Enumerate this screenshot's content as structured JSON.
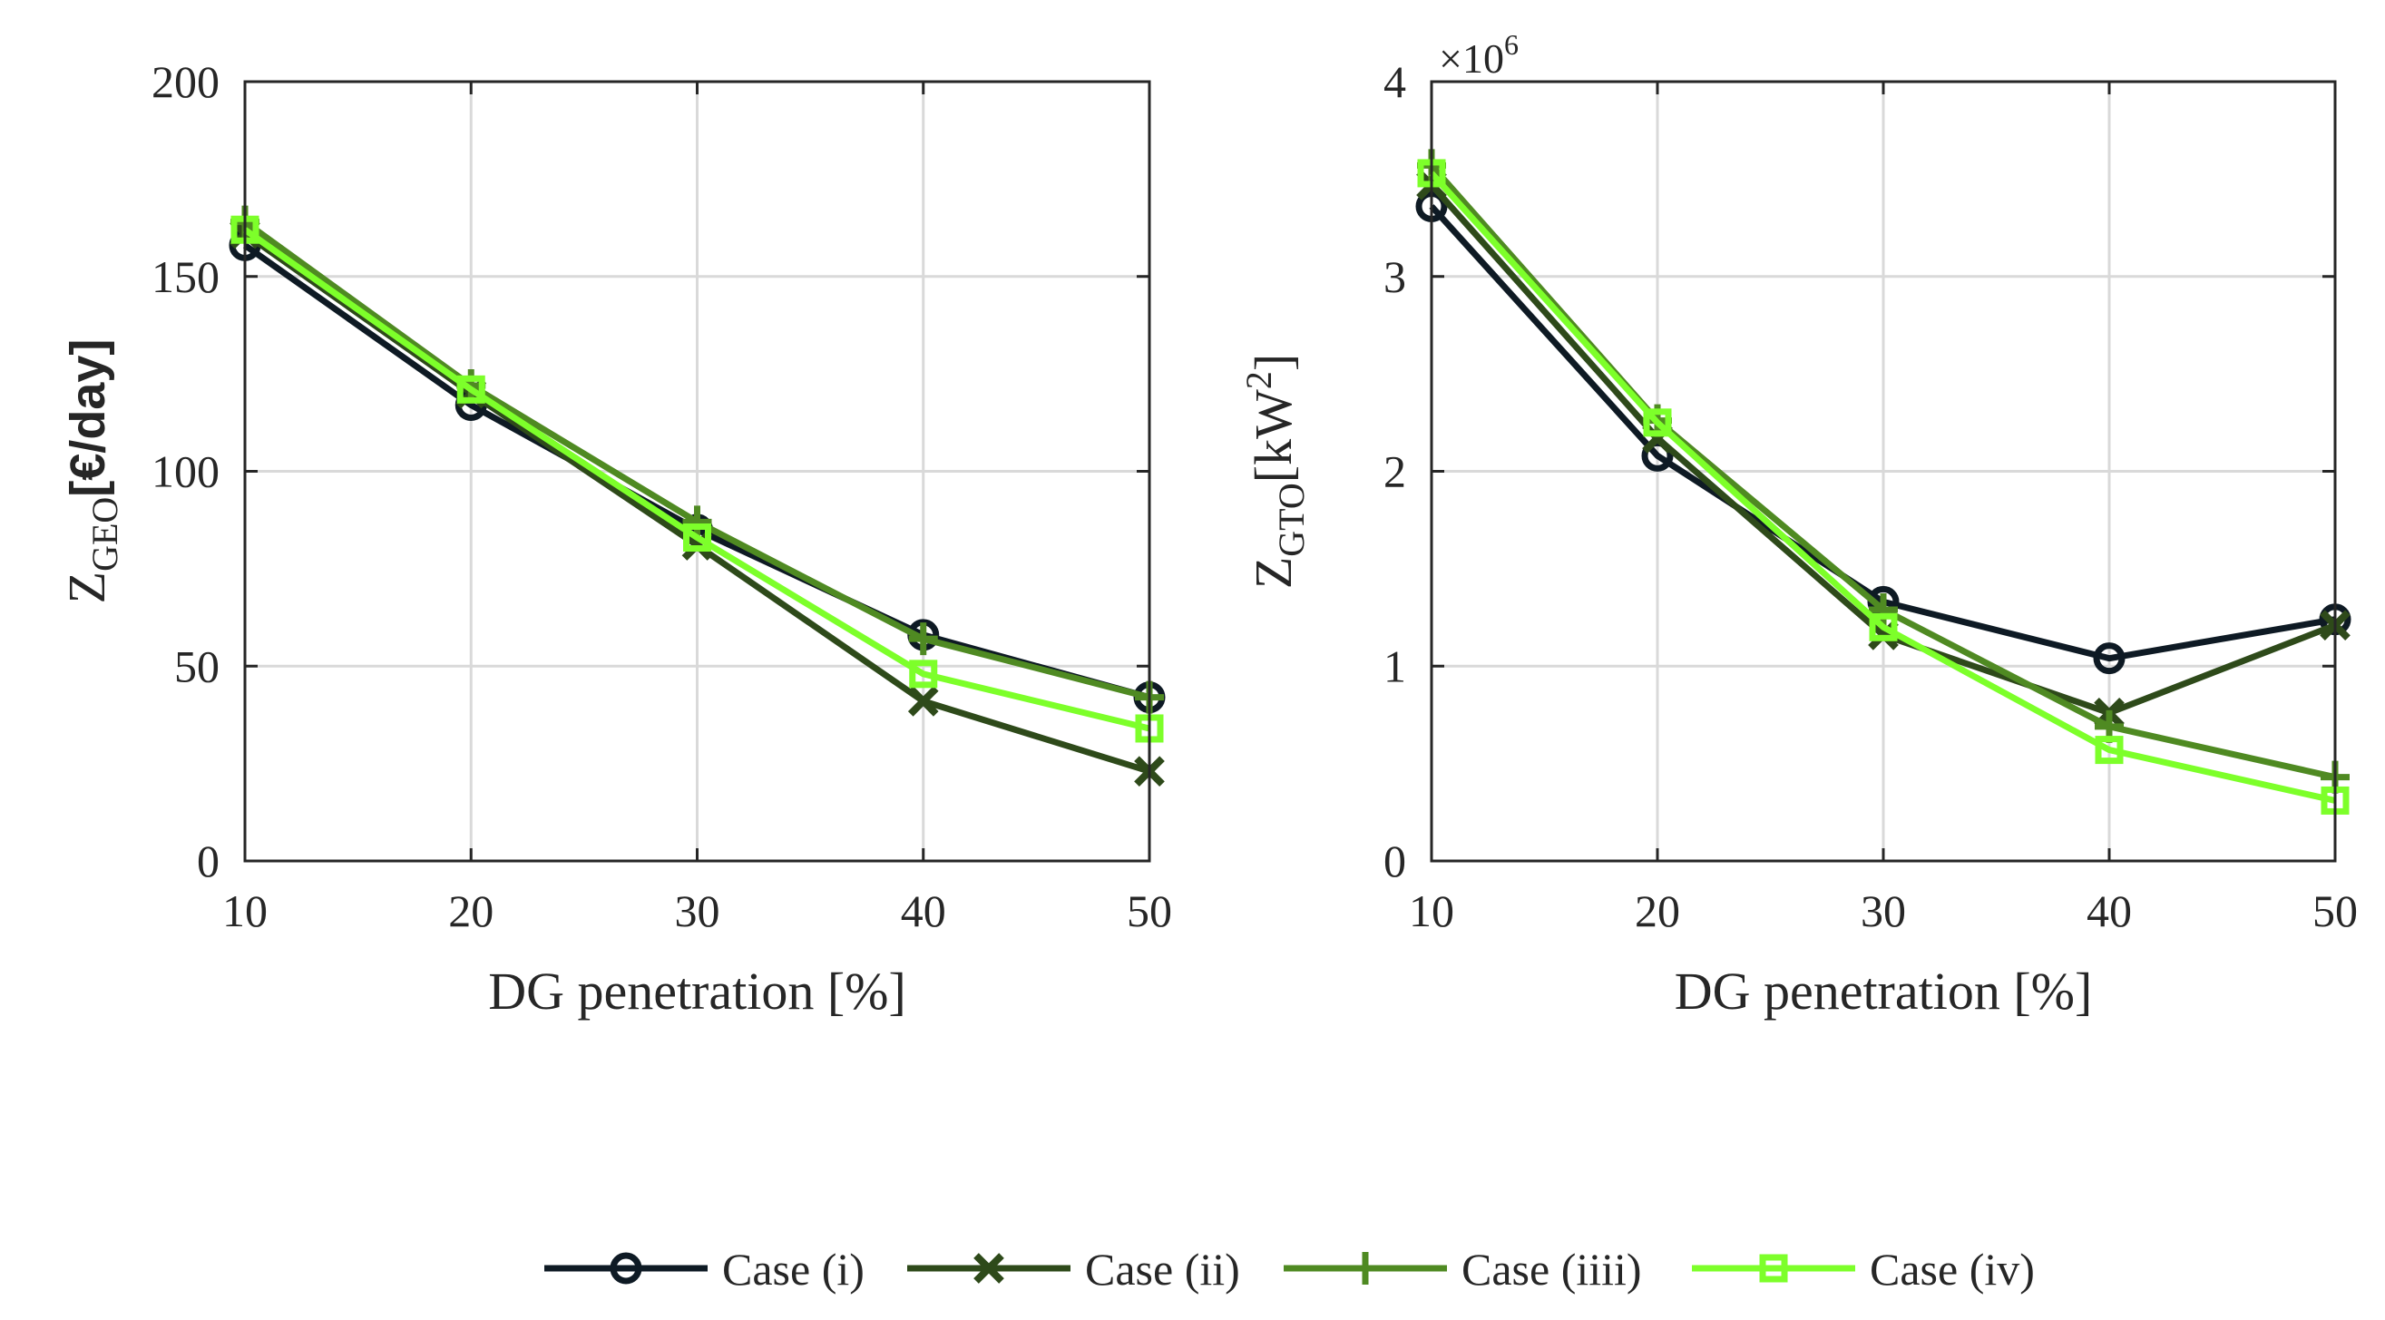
{
  "chart_data": [
    {
      "type": "line",
      "title": "",
      "xlabel": "DG penetration [%]",
      "ylabel": {
        "main": "Z",
        "sub": "GEO",
        "unit": "[€/day]"
      },
      "x": [
        10,
        20,
        30,
        40,
        50
      ],
      "xlim": [
        10,
        50
      ],
      "ylim": [
        0,
        200
      ],
      "xticks": [
        "10",
        "20",
        "30",
        "40",
        "50"
      ],
      "yticks": [
        "0",
        "50",
        "100",
        "150",
        "200"
      ],
      "ytick_values": [
        0,
        50,
        100,
        150,
        200
      ],
      "exponent_label": "",
      "grid": true,
      "series": [
        {
          "name": "Case (i)",
          "values": [
            158,
            117,
            85,
            58,
            42
          ]
        },
        {
          "name": "Case (ii)",
          "values": [
            161,
            120,
            81,
            41,
            23
          ]
        },
        {
          "name": "Case (iiii)",
          "values": [
            164,
            122,
            87,
            57,
            42
          ]
        },
        {
          "name": "Case (iv)",
          "values": [
            162,
            121,
            83,
            48,
            34
          ]
        }
      ]
    },
    {
      "type": "line",
      "title": "",
      "xlabel": "DG penetration [%]",
      "ylabel": {
        "main": "Z",
        "sub": "GTO",
        "unit": "[kW",
        "sup": "2",
        "close": "]"
      },
      "x": [
        10,
        20,
        30,
        40,
        50
      ],
      "xlim": [
        10,
        50
      ],
      "ylim": [
        0,
        4000000
      ],
      "xticks": [
        "10",
        "20",
        "30",
        "40",
        "50"
      ],
      "yticks": [
        "0",
        "1",
        "2",
        "3",
        "4"
      ],
      "ytick_values": [
        0,
        1000000,
        2000000,
        3000000,
        4000000
      ],
      "exponent_label": {
        "base": "×10",
        "exp": "6"
      },
      "grid": true,
      "series": [
        {
          "name": "Case (i)",
          "values": [
            3360000,
            2080000,
            1330000,
            1040000,
            1240000
          ]
        },
        {
          "name": "Case (ii)",
          "values": [
            3470000,
            2170000,
            1160000,
            760000,
            1210000
          ]
        },
        {
          "name": "Case (iiii)",
          "values": [
            3570000,
            2260000,
            1290000,
            690000,
            430000
          ]
        },
        {
          "name": "Case (iv)",
          "values": [
            3530000,
            2250000,
            1200000,
            570000,
            310000
          ]
        }
      ]
    }
  ],
  "legend": {
    "position": "bottom-center",
    "entries": [
      {
        "label": "Case (i)",
        "color": "#0e1a24",
        "marker": "circle"
      },
      {
        "label": "Case (ii)",
        "color": "#2e4a1a",
        "marker": "x"
      },
      {
        "label": "Case (iiii)",
        "color": "#4f8a22",
        "marker": "plus"
      },
      {
        "label": "Case (iv)",
        "color": "#7dff2a",
        "marker": "square"
      }
    ]
  },
  "colors": {
    "axis": "#262626",
    "grid": "#d9d9d9",
    "series": [
      "#0e1a24",
      "#2e4a1a",
      "#4f8a22",
      "#7dff2a"
    ]
  }
}
